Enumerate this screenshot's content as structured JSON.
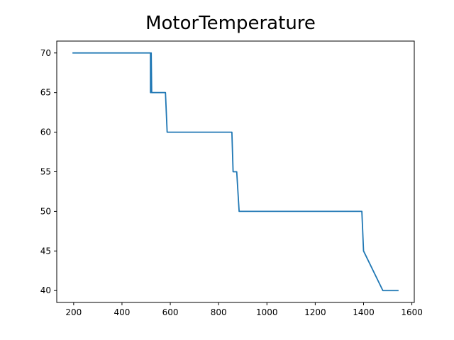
{
  "chart_data": {
    "type": "line",
    "title": "MotorTemperature",
    "xlabel": "",
    "ylabel": "",
    "xlim": [
      130,
      1610
    ],
    "ylim": [
      38.5,
      71.5
    ],
    "xticks": [
      200,
      400,
      600,
      800,
      1000,
      1200,
      1400,
      1600
    ],
    "yticks": [
      40,
      45,
      50,
      55,
      60,
      65,
      70
    ],
    "grid": false,
    "color": "#1f77b4",
    "series": [
      {
        "x": [
          195,
          518,
          518,
          521,
          521,
          523,
          580,
          587,
          855,
          860,
          872,
          875,
          885,
          1393,
          1400,
          1480,
          1545
        ],
        "y": [
          70,
          70,
          65,
          65,
          70,
          65,
          65,
          60,
          60,
          55,
          55,
          55,
          50,
          50,
          45,
          40,
          40
        ]
      }
    ]
  }
}
